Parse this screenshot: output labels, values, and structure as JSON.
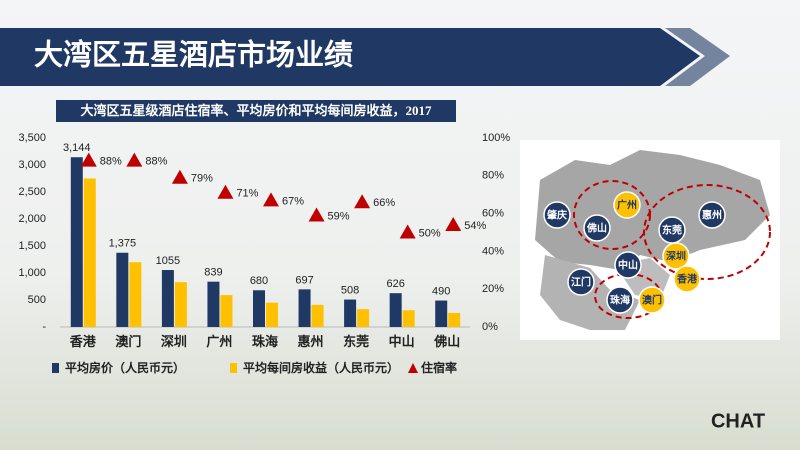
{
  "header": {
    "title": "大湾区五星酒店市场业绩"
  },
  "chart_data": {
    "type": "bar",
    "title": "大湾区五星级酒店住宿率、平均房价和平均每间房收益，2017",
    "categories": [
      "香港",
      "澳门",
      "深圳",
      "广州",
      "珠海",
      "惠州",
      "东莞",
      "中山",
      "佛山"
    ],
    "series": [
      {
        "name": "平均房价（人民币元）",
        "color": "#1f3864",
        "values": [
          3144,
          1375,
          1055,
          839,
          680,
          697,
          508,
          626,
          490
        ],
        "value_labels": [
          "3,144",
          "1,375",
          "1055",
          "839",
          "680",
          "697",
          "508",
          "626",
          "490"
        ]
      },
      {
        "name": "平均每间房收益（人民币元）",
        "color": "#ffc000",
        "values": [
          2750,
          1200,
          830,
          590,
          450,
          410,
          330,
          310,
          260
        ]
      },
      {
        "name": "住宿率",
        "color": "#c00000",
        "axis": "y2",
        "values": [
          88,
          88,
          79,
          71,
          67,
          59,
          66,
          50,
          54
        ],
        "value_labels": [
          "88%",
          "88%",
          "79%",
          "71%",
          "67%",
          "59%",
          "66%",
          "50%",
          "54%"
        ]
      }
    ],
    "ylim": [
      0,
      3500
    ],
    "yticks": [
      {
        "value": 0,
        "label": "-"
      },
      500,
      {
        "value": 1000,
        "label": "1,000"
      },
      {
        "value": 1500,
        "label": "1,500"
      },
      {
        "value": 2000,
        "label": "2,000"
      },
      {
        "value": 2500,
        "label": "2,500"
      },
      {
        "value": 3000,
        "label": "3,000"
      },
      {
        "value": 3500,
        "label": "3,500"
      }
    ],
    "y2lim": [
      0,
      100
    ],
    "y2ticks": [
      {
        "value": 0,
        "label": "0%"
      },
      {
        "value": 20,
        "label": "20%"
      },
      {
        "value": 40,
        "label": "40%"
      },
      {
        "value": 60,
        "label": "60%"
      },
      {
        "value": 80,
        "label": "80%"
      },
      {
        "value": 100,
        "label": "100%"
      }
    ],
    "grid": false
  },
  "map": {
    "cities": [
      "肇庆",
      "广州",
      "佛山",
      "惠州",
      "东莞",
      "深圳",
      "江门",
      "中山",
      "香港",
      "珠海",
      "澳门"
    ]
  },
  "logo": "CHAT"
}
